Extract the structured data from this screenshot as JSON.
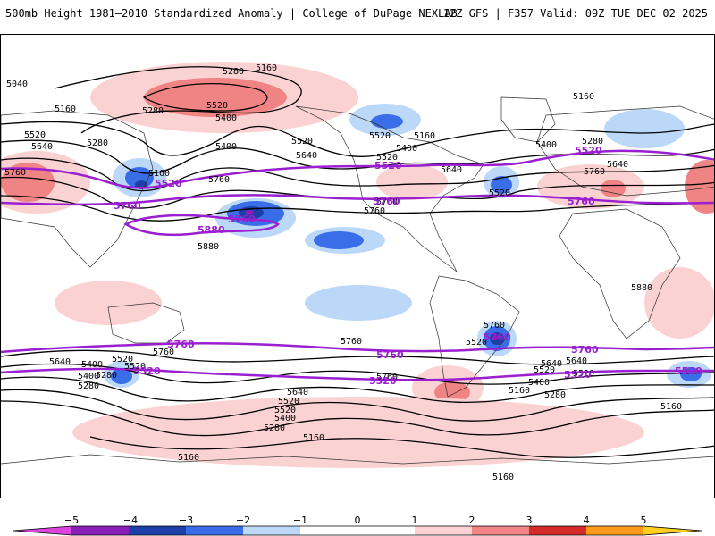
{
  "header": {
    "title": "500mb Height 1981–2010 Standardized Anomaly | College of DuPage NEXLAB",
    "model_info": "12Z GFS | F357 Valid: 09Z TUE DEC 02 2025"
  },
  "map": {
    "contour_labels": [
      "5040",
      "5280",
      "5160",
      "5160",
      "5520",
      "5400",
      "5280",
      "5160",
      "5520",
      "5640",
      "5280",
      "5760",
      "5160",
      "5520",
      "5400",
      "5760",
      "5520",
      "5640",
      "5400",
      "5160",
      "5640",
      "5520",
      "5280",
      "5400",
      "5640",
      "5760",
      "5880",
      "5760",
      "5880",
      "5760",
      "5760",
      "5640",
      "5520",
      "5400",
      "5280",
      "5520",
      "5760",
      "5640",
      "5520",
      "5400",
      "5280",
      "5160",
      "5160",
      "5760",
      "5520",
      "5640",
      "5400",
      "5160",
      "5280",
      "5160",
      "5520",
      "5640",
      "5520",
      "5400",
      "5280",
      "5520",
      "5520",
      "5760",
      "5160"
    ],
    "highlight_labels": [
      "5520",
      "5520",
      "5760",
      "5760",
      "5760",
      "5880",
      "5760",
      "5520",
      "5760",
      "5520",
      "5520",
      "5760",
      "5760",
      "5520",
      "5760",
      "5520"
    ]
  },
  "colorbar": {
    "tick_labels": [
      "−5",
      "−4",
      "−3",
      "−2",
      "−1",
      "0",
      "1",
      "2",
      "3",
      "4",
      "5"
    ],
    "colors": [
      "#dd44dd",
      "#8a1fb8",
      "#1c3fa8",
      "#3a6ee8",
      "#bcd8f8",
      "#ffffff",
      "#fbd2d2",
      "#f08484",
      "#d42a2a",
      "#ff9a1a",
      "#ffd020"
    ]
  }
}
